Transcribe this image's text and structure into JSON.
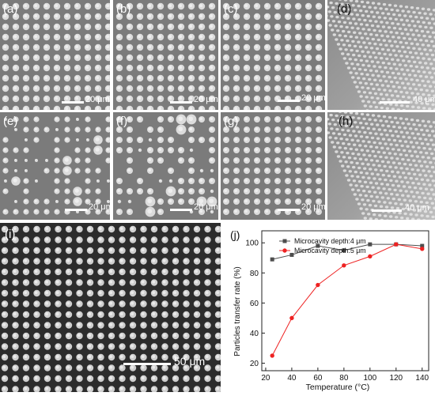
{
  "panels": [
    {
      "id": "a",
      "label": "(a)",
      "scale_label": "20 μm",
      "kind": "grid"
    },
    {
      "id": "b",
      "label": "(b)",
      "scale_label": "20 μm",
      "kind": "grid"
    },
    {
      "id": "c",
      "label": "(c)",
      "scale_label": "20 μm",
      "kind": "grid"
    },
    {
      "id": "d",
      "label": "(d)",
      "scale_label": "40 μm",
      "kind": "tilted"
    },
    {
      "id": "e",
      "label": "(e)",
      "scale_label": "20 μm",
      "kind": "grid-sparse"
    },
    {
      "id": "f",
      "label": "(f)",
      "scale_label": "20 μm",
      "kind": "grid-sparse"
    },
    {
      "id": "g",
      "label": "(g)",
      "scale_label": "20 μm",
      "kind": "grid"
    },
    {
      "id": "h",
      "label": "(h)",
      "scale_label": "40 μm",
      "kind": "tilted"
    },
    {
      "id": "i",
      "label": "(i)",
      "scale_label": "50 μm",
      "kind": "grid-large"
    }
  ],
  "chart_data": {
    "type": "line",
    "panel_label": "(j)",
    "title": "",
    "xlabel": "Temperature (°C)",
    "ylabel": "Particles transfer rate (%)",
    "xlim": [
      17,
      145
    ],
    "ylim": [
      15,
      108
    ],
    "xticks": [
      20,
      40,
      60,
      80,
      100,
      120,
      140
    ],
    "yticks": [
      20,
      40,
      60,
      80,
      100
    ],
    "x": [
      25,
      40,
      60,
      80,
      100,
      120,
      140
    ],
    "series": [
      {
        "name": "Microcavity depth:4 μm",
        "color": "#4d4d4d",
        "marker": "square",
        "values": [
          89,
          92,
          98,
          95,
          99,
          99,
          98
        ]
      },
      {
        "name": "Microcavity depth:5 μm",
        "color": "#ee2222",
        "marker": "circle",
        "values": [
          25,
          50,
          72,
          85,
          91,
          99,
          96
        ]
      }
    ],
    "legend_position": "top-left",
    "grid": false
  }
}
